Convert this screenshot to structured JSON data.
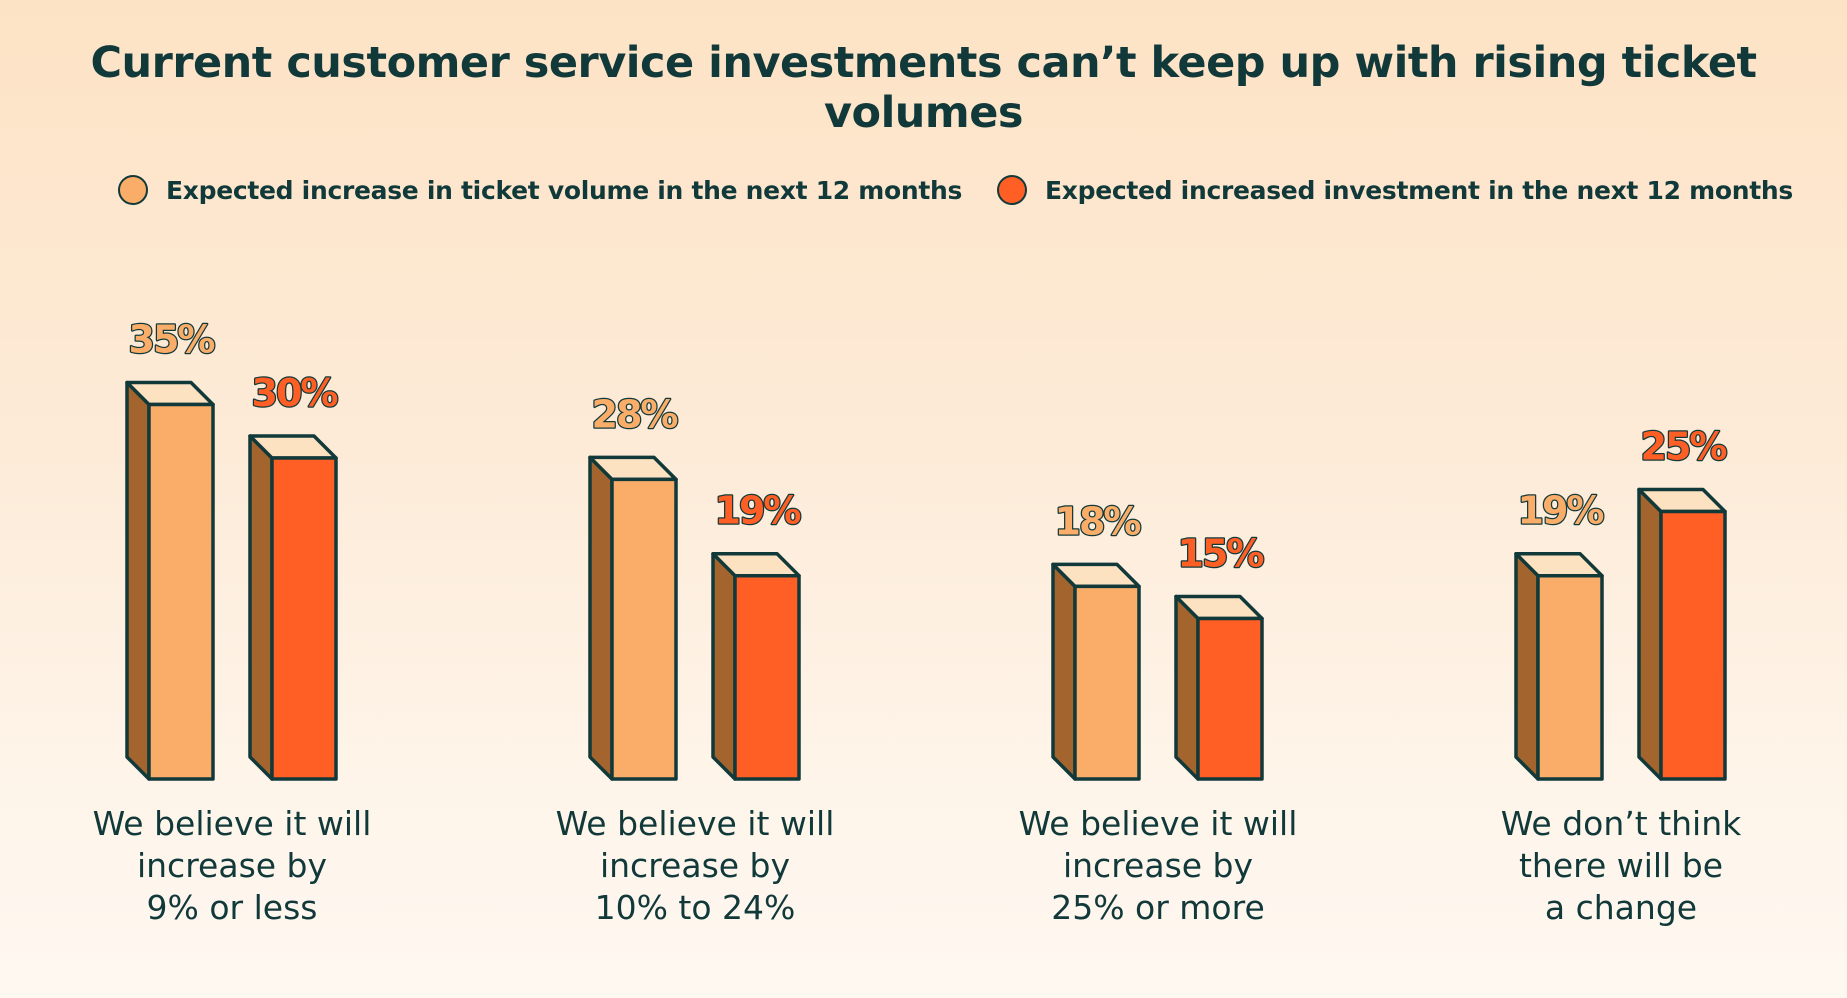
{
  "title": "Current customer service investments can’t keep up with rising ticket volumes",
  "legend": [
    {
      "label": "Expected increase in ticket volume in the next 12 months",
      "color": "#f9ad68"
    },
    {
      "label": "Expected increased investment in the next 12 months",
      "color": "#ff5f24"
    }
  ],
  "colors": {
    "series_1_front": "#f9ad68",
    "series_2_front": "#ff5f24",
    "bar_side": "#a3652d",
    "bar_top": "#fde2c2",
    "outline": "#12393a",
    "series_1_label": "#f9ad68",
    "series_2_label": "#ff5f24"
  },
  "chart_data": {
    "type": "bar",
    "title": "Current customer service investments can’t keep up with rising ticket volumes",
    "categories": [
      "We believe it will\nincrease by\n9% or less",
      "We believe it will\nincrease by\n10% to 24%",
      "We believe it will\nincrease by\n25% or more",
      "We don’t think\nthere will be\na change"
    ],
    "series": [
      {
        "name": "Expected increase in ticket volume in the next 12 months",
        "values": [
          35,
          28,
          18,
          19
        ]
      },
      {
        "name": "Expected increased investment in the next 12 months",
        "values": [
          30,
          19,
          15,
          25
        ]
      }
    ],
    "data_labels": [
      [
        "35%",
        "28%",
        "18%",
        "19%"
      ],
      [
        "30%",
        "19%",
        "15%",
        "25%"
      ]
    ],
    "unit": "%",
    "legend_position": "top",
    "grid": false,
    "axes_visible": false
  }
}
